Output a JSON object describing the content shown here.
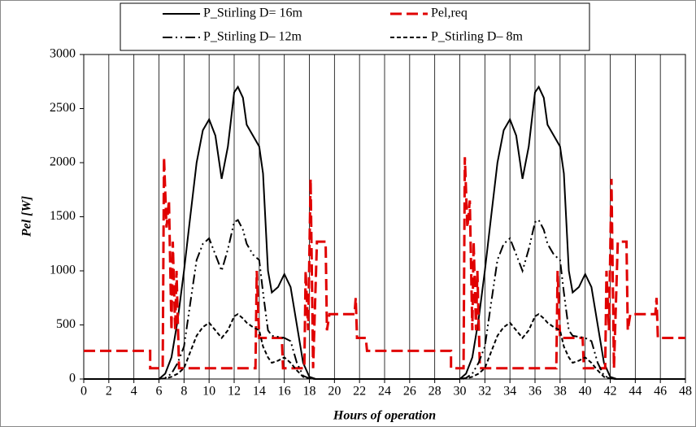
{
  "chart_data": {
    "type": "line",
    "xlabel": "Hours of operation",
    "ylabel": "Pel [W]",
    "xlim": [
      0,
      48
    ],
    "xticks": [
      0,
      2,
      4,
      6,
      8,
      10,
      12,
      14,
      16,
      18,
      20,
      22,
      24,
      26,
      28,
      30,
      32,
      34,
      36,
      38,
      40,
      42,
      44,
      46,
      48
    ],
    "ylim": [
      0,
      3000
    ],
    "yticks": [
      0,
      500,
      1000,
      1500,
      2000,
      2500,
      3000
    ],
    "grid": "x",
    "legend": "top",
    "series": [
      {
        "name": "P_Stirling D= 16m",
        "color": "#000000",
        "style": "solid",
        "x": [
          0,
          6,
          6.5,
          7,
          7.5,
          8,
          8.5,
          9,
          9.5,
          10,
          10.5,
          11,
          11.5,
          12,
          12.3,
          12.7,
          13,
          13.5,
          14,
          14.3,
          14.7,
          15,
          15.5,
          16,
          16.5,
          17,
          17.5,
          18,
          18.5,
          30,
          30.5,
          31,
          31.5,
          32,
          32.5,
          33,
          33.5,
          34,
          34.5,
          35,
          35.5,
          36,
          36.3,
          36.7,
          37,
          37.5,
          38,
          38.3,
          38.7,
          39,
          39.5,
          40,
          40.5,
          41,
          41.5,
          42,
          42.5,
          48
        ],
        "values": [
          0,
          0,
          50,
          200,
          550,
          1000,
          1500,
          2000,
          2300,
          2400,
          2250,
          1850,
          2150,
          2650,
          2700,
          2600,
          2350,
          2250,
          2150,
          1900,
          1000,
          800,
          850,
          970,
          850,
          500,
          150,
          20,
          0,
          0,
          50,
          200,
          550,
          1000,
          1500,
          2000,
          2300,
          2400,
          2250,
          1850,
          2150,
          2650,
          2700,
          2600,
          2350,
          2250,
          2150,
          1900,
          1000,
          800,
          850,
          970,
          850,
          500,
          150,
          20,
          0,
          0
        ]
      },
      {
        "name": "Pel,req",
        "color": "#e00000",
        "style": "longdash",
        "x": [
          0,
          5.3,
          5.3,
          6.3,
          6.4,
          6.6,
          6.8,
          7.0,
          7.1,
          7.3,
          7.4,
          7.6,
          13.7,
          13.8,
          14.0,
          15.8,
          15.9,
          17.6,
          17.7,
          17.9,
          18.1,
          18.3,
          18.6,
          19.3,
          19.4,
          19.6,
          21.6,
          21.7,
          21.8,
          22.5,
          22.6,
          29.3,
          29.3,
          30.3,
          30.4,
          30.6,
          30.8,
          31.0,
          31.1,
          31.3,
          31.4,
          31.6,
          37.7,
          37.8,
          38.0,
          39.8,
          39.9,
          41.6,
          41.7,
          41.9,
          42.1,
          42.3,
          42.6,
          43.3,
          43.4,
          43.6,
          45.6,
          45.7,
          45.8,
          48
        ],
        "values": [
          260,
          260,
          100,
          100,
          2050,
          1400,
          1650,
          450,
          1270,
          450,
          1000,
          100,
          100,
          1000,
          380,
          380,
          100,
          100,
          1000,
          450,
          1850,
          100,
          1270,
          1270,
          450,
          600,
          600,
          750,
          380,
          380,
          260,
          260,
          100,
          100,
          2050,
          1400,
          1650,
          450,
          1270,
          450,
          1000,
          100,
          100,
          1000,
          380,
          380,
          100,
          100,
          1000,
          450,
          1850,
          100,
          1270,
          1270,
          450,
          600,
          600,
          750,
          380,
          380
        ]
      },
      {
        "name": "P_Stirling D– 12m",
        "color": "#000000",
        "style": "dashdotdot",
        "x": [
          0,
          6,
          6.5,
          7,
          7.5,
          8,
          8.5,
          9,
          9.5,
          10,
          10.5,
          11,
          11.5,
          12,
          12.3,
          12.7,
          13,
          13.5,
          14,
          14.3,
          14.7,
          15,
          15.5,
          16,
          16.5,
          17,
          17.5,
          18,
          18.5,
          30,
          30.5,
          31,
          31.5,
          32,
          32.5,
          33,
          33.5,
          34,
          34.5,
          35,
          35.5,
          36,
          36.3,
          36.7,
          37,
          37.5,
          38,
          38.3,
          38.7,
          39,
          39.5,
          40,
          40.5,
          41,
          41.5,
          42,
          42.5,
          48
        ],
        "values": [
          0,
          0,
          10,
          50,
          150,
          300,
          700,
          1100,
          1250,
          1300,
          1150,
          1000,
          1200,
          1450,
          1470,
          1380,
          1250,
          1150,
          1100,
          800,
          450,
          400,
          390,
          380,
          350,
          150,
          30,
          5,
          0,
          0,
          10,
          50,
          150,
          300,
          700,
          1100,
          1250,
          1300,
          1150,
          1000,
          1200,
          1450,
          1470,
          1380,
          1250,
          1150,
          1100,
          800,
          450,
          400,
          390,
          380,
          350,
          150,
          30,
          5,
          0,
          0
        ]
      },
      {
        "name": "P_Stirling D– 8m",
        "color": "#000000",
        "style": "dashed",
        "x": [
          0,
          6,
          6.5,
          7,
          7.5,
          8,
          8.5,
          9,
          9.5,
          10,
          10.5,
          11,
          11.5,
          12,
          12.3,
          12.7,
          13,
          13.5,
          14,
          14.3,
          14.7,
          15,
          15.5,
          16,
          16.5,
          17,
          17.5,
          18,
          18.5,
          30,
          30.5,
          31,
          31.5,
          32,
          32.5,
          33,
          33.5,
          34,
          34.5,
          35,
          35.5,
          36,
          36.3,
          36.7,
          37,
          37.5,
          38,
          38.3,
          38.7,
          39,
          39.5,
          40,
          40.5,
          41,
          41.5,
          42,
          42.5,
          48
        ],
        "values": [
          0,
          0,
          5,
          20,
          50,
          100,
          250,
          400,
          480,
          520,
          450,
          380,
          450,
          580,
          600,
          560,
          520,
          480,
          450,
          300,
          200,
          150,
          170,
          200,
          150,
          80,
          20,
          5,
          0,
          0,
          5,
          20,
          50,
          100,
          250,
          400,
          480,
          520,
          450,
          380,
          450,
          580,
          600,
          560,
          520,
          480,
          450,
          300,
          200,
          150,
          170,
          200,
          150,
          80,
          20,
          5,
          0,
          0
        ]
      }
    ]
  }
}
